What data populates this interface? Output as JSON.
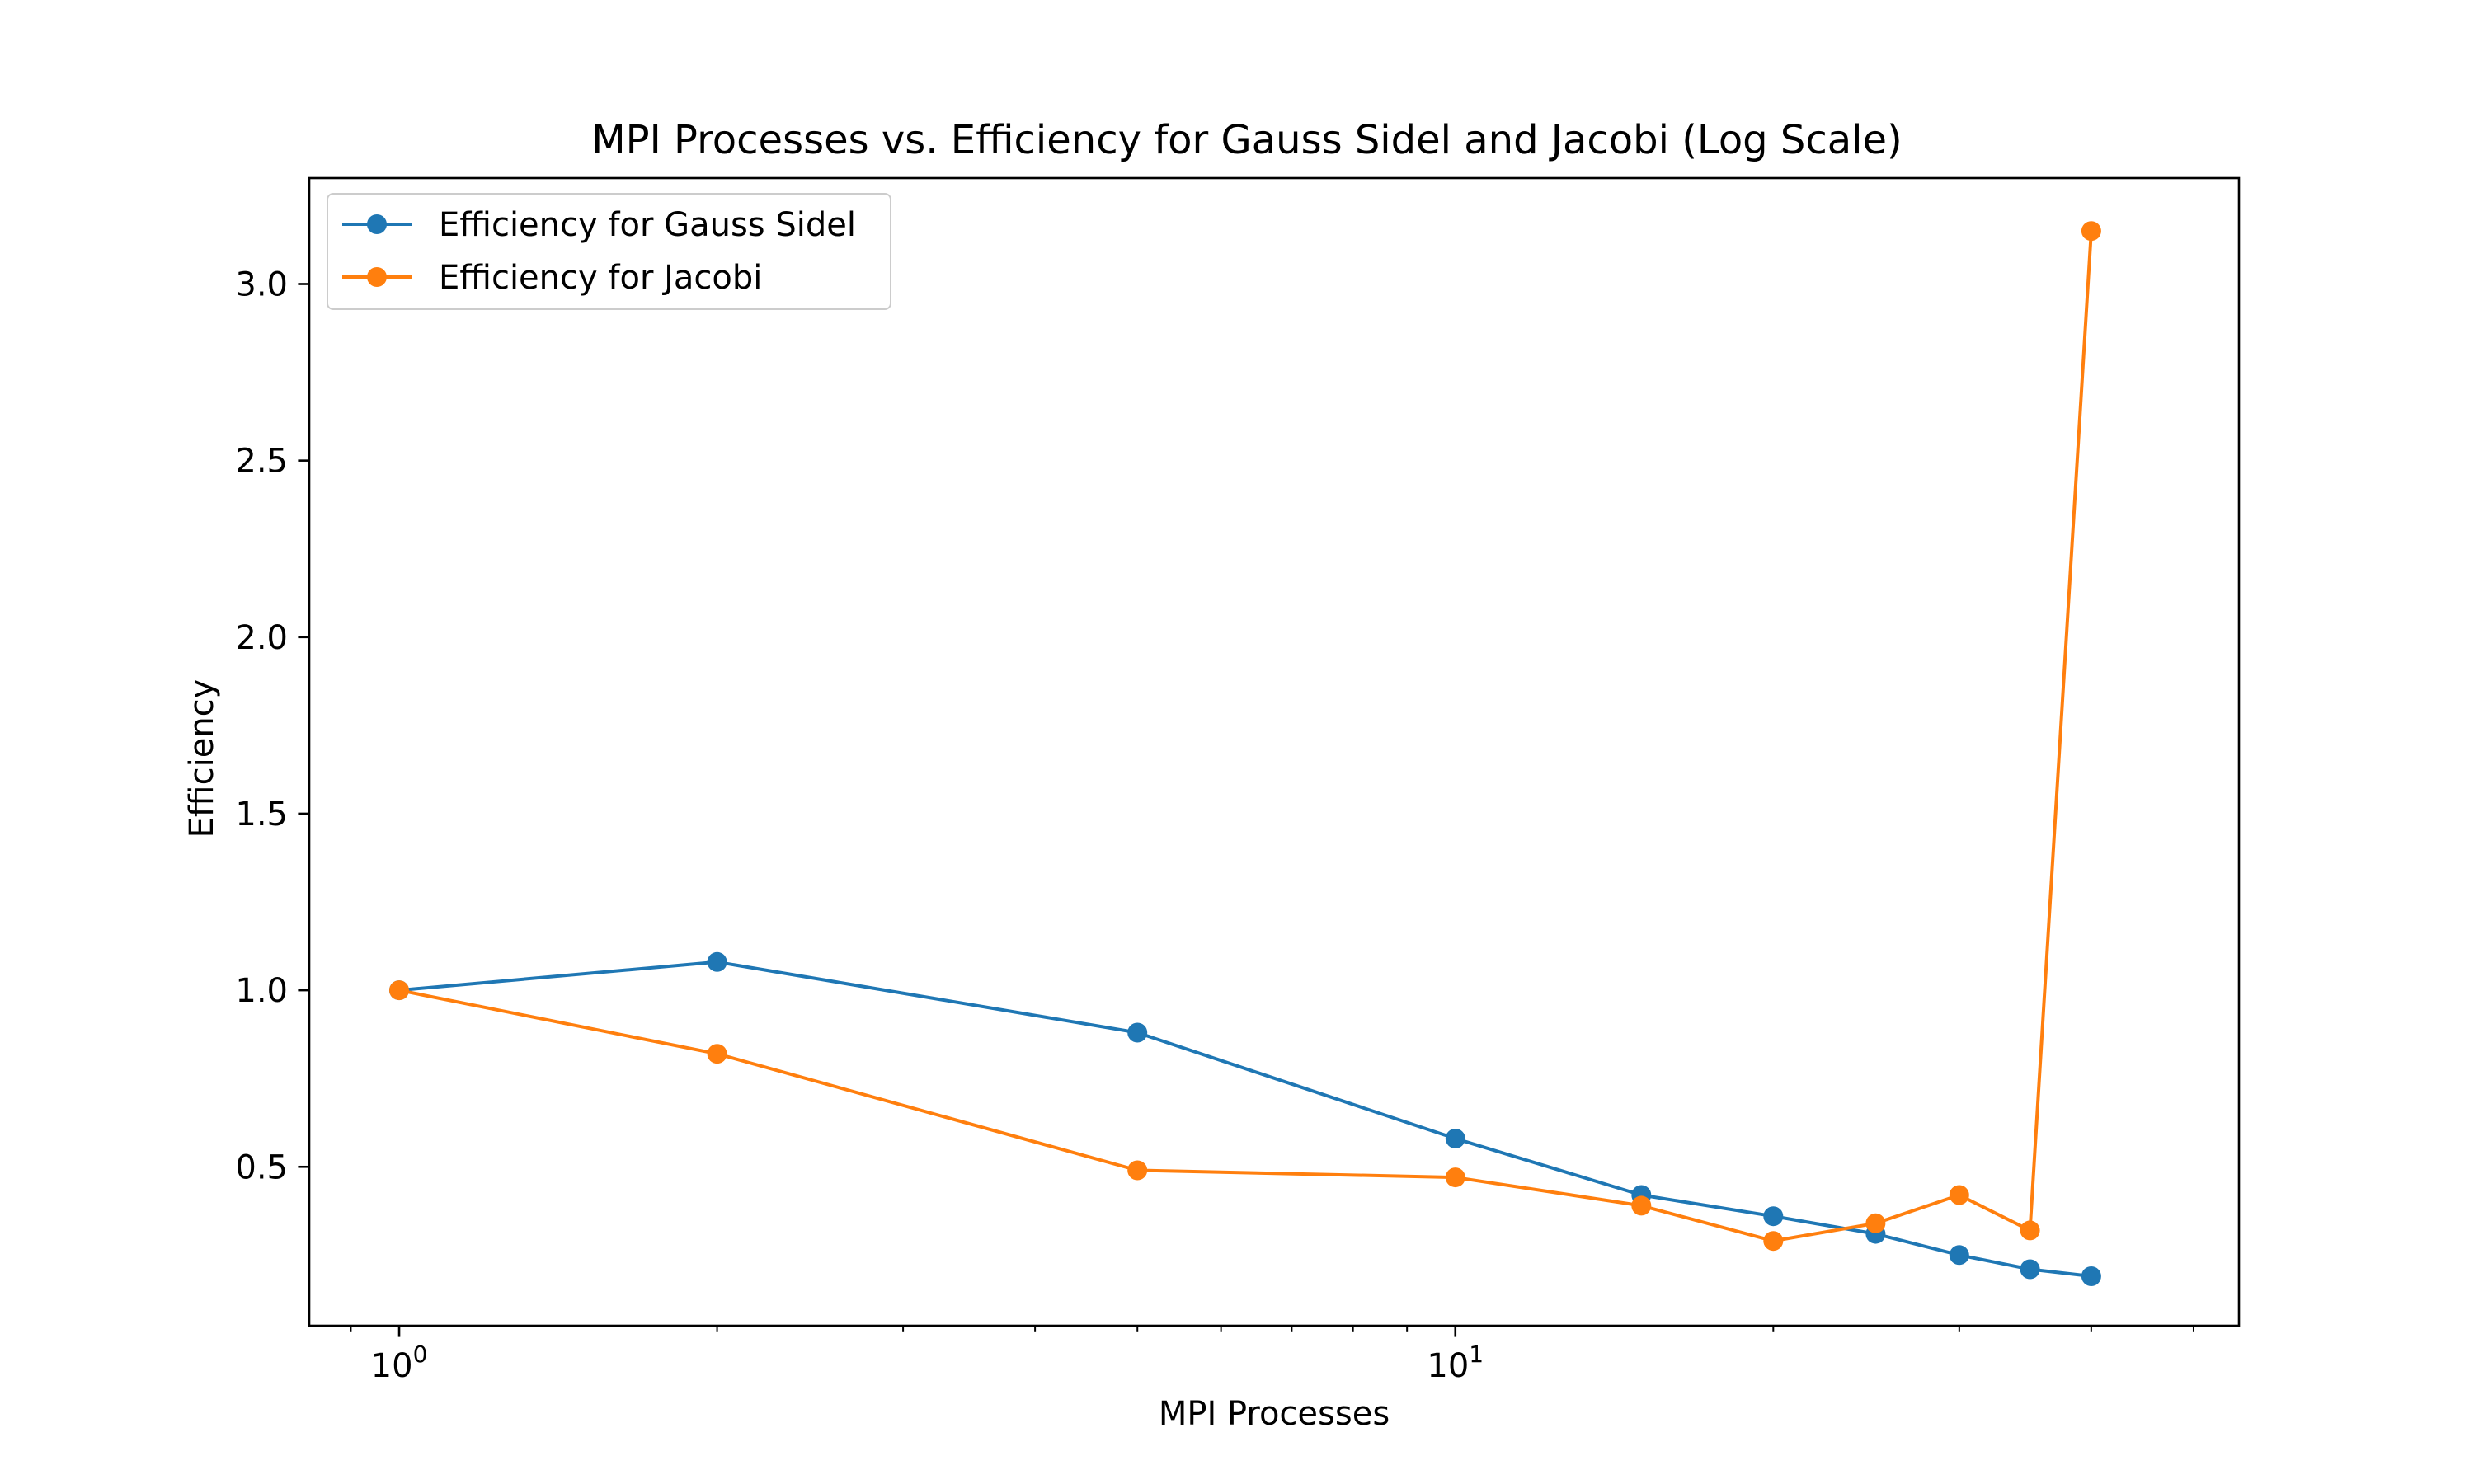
{
  "chart_data": {
    "type": "line",
    "title": "MPI Processes vs. Efficiency for Gauss Sidel and Jacobi (Log Scale)",
    "xlabel": "MPI Processes",
    "ylabel": "Efficiency",
    "xscale": "log",
    "xlim": [
      0.822,
      55.2
    ],
    "ylim": [
      0.05,
      3.3
    ],
    "x_ticks": [
      {
        "value": 1,
        "label": "10",
        "exp": "0"
      },
      {
        "value": 10,
        "label": "10",
        "exp": "1"
      }
    ],
    "y_ticks": [
      {
        "value": 0.5,
        "label": "0.5"
      },
      {
        "value": 1.0,
        "label": "1.0"
      },
      {
        "value": 1.5,
        "label": "1.5"
      },
      {
        "value": 2.0,
        "label": "2.0"
      },
      {
        "value": 2.5,
        "label": "2.5"
      },
      {
        "value": 3.0,
        "label": "3.0"
      }
    ],
    "grid": false,
    "legend_position": "top-left",
    "series": [
      {
        "name": "Efficiency for Gauss Sidel",
        "color": "#1f77b4",
        "marker": "circle",
        "x": [
          1,
          2,
          5,
          10,
          15,
          20,
          25,
          30,
          35,
          40
        ],
        "y": [
          1.0,
          1.08,
          0.88,
          0.58,
          0.42,
          0.36,
          0.31,
          0.25,
          0.21,
          0.19
        ]
      },
      {
        "name": "Efficiency for Jacobi",
        "color": "#ff7f0e",
        "marker": "circle",
        "x": [
          1,
          2,
          5,
          10,
          15,
          20,
          25,
          30,
          35,
          40
        ],
        "y": [
          1.0,
          0.82,
          0.49,
          0.47,
          0.39,
          0.29,
          0.34,
          0.42,
          0.32,
          3.15
        ]
      }
    ]
  }
}
